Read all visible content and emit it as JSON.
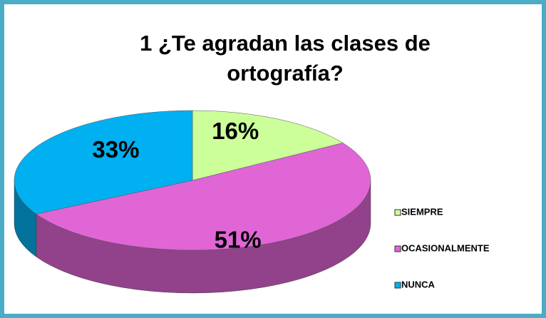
{
  "chart_data": {
    "type": "pie",
    "title": "1 ¿Te agradan las clases de ortografía?",
    "categories": [
      "SIEMPRE",
      "OCASIONALMENTE",
      "NUNCA"
    ],
    "values": [
      16,
      51,
      33
    ],
    "value_labels": [
      "16%",
      "51%",
      "33%"
    ],
    "colors": [
      "#ccff99",
      "#e066d6",
      "#00b0f0"
    ],
    "legend": "right"
  }
}
